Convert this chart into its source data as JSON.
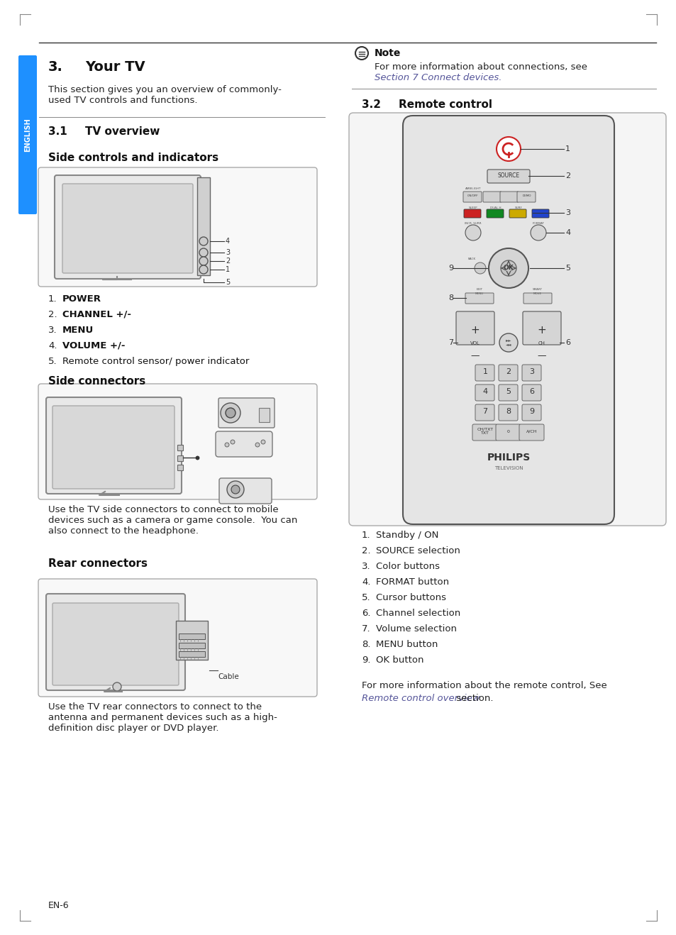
{
  "page_bg": "#ffffff",
  "blue_tab_color": "#1e90ff",
  "blue_tab_text": "ENGLISH",
  "section3_title": "3.",
  "section3_title_label": "Your TV",
  "section3_body": "This section gives you an overview of commonly-\nused TV controls and functions.",
  "section31_title": "3.1",
  "section31_label": "TV overview",
  "side_controls_title": "Side controls and indicators",
  "left_list": [
    [
      "1.",
      "POWER",
      true
    ],
    [
      "2.",
      "CHANNEL +/-",
      true
    ],
    [
      "3.",
      "MENU",
      true
    ],
    [
      "4.",
      "VOLUME +/-",
      true
    ],
    [
      "5.",
      "Remote control sensor/ power indicator",
      false
    ]
  ],
  "side_connectors_title": "Side connectors",
  "side_connectors_body": "Use the TV side connectors to connect to mobile\ndevices such as a camera or game console.  You can\nalso connect to the headphone.",
  "rear_connectors_title": "Rear connectors",
  "rear_connectors_body": "Use the TV rear connectors to connect to the\nantenna and permanent devices such as a high-\ndefinition disc player or DVD player.",
  "note_text_bold": "Note",
  "note_body1": "For more information about connections, see",
  "note_body2": "Section 7 Connect devices.",
  "section32_title": "3.2",
  "section32_label": "Remote control",
  "remote_list": [
    "Standby / ON",
    "SOURCE selection",
    "Color buttons",
    "FORMAT button",
    "Cursor buttons",
    "Channel selection",
    "Volume selection",
    "MENU button",
    "OK button"
  ],
  "remote_footer1": "For more information about the remote control, See",
  "remote_footer2": "Remote control overview",
  "remote_footer3": " section.",
  "footer_text": "EN-6",
  "divider_color": "#888888",
  "text_color": "#222222"
}
